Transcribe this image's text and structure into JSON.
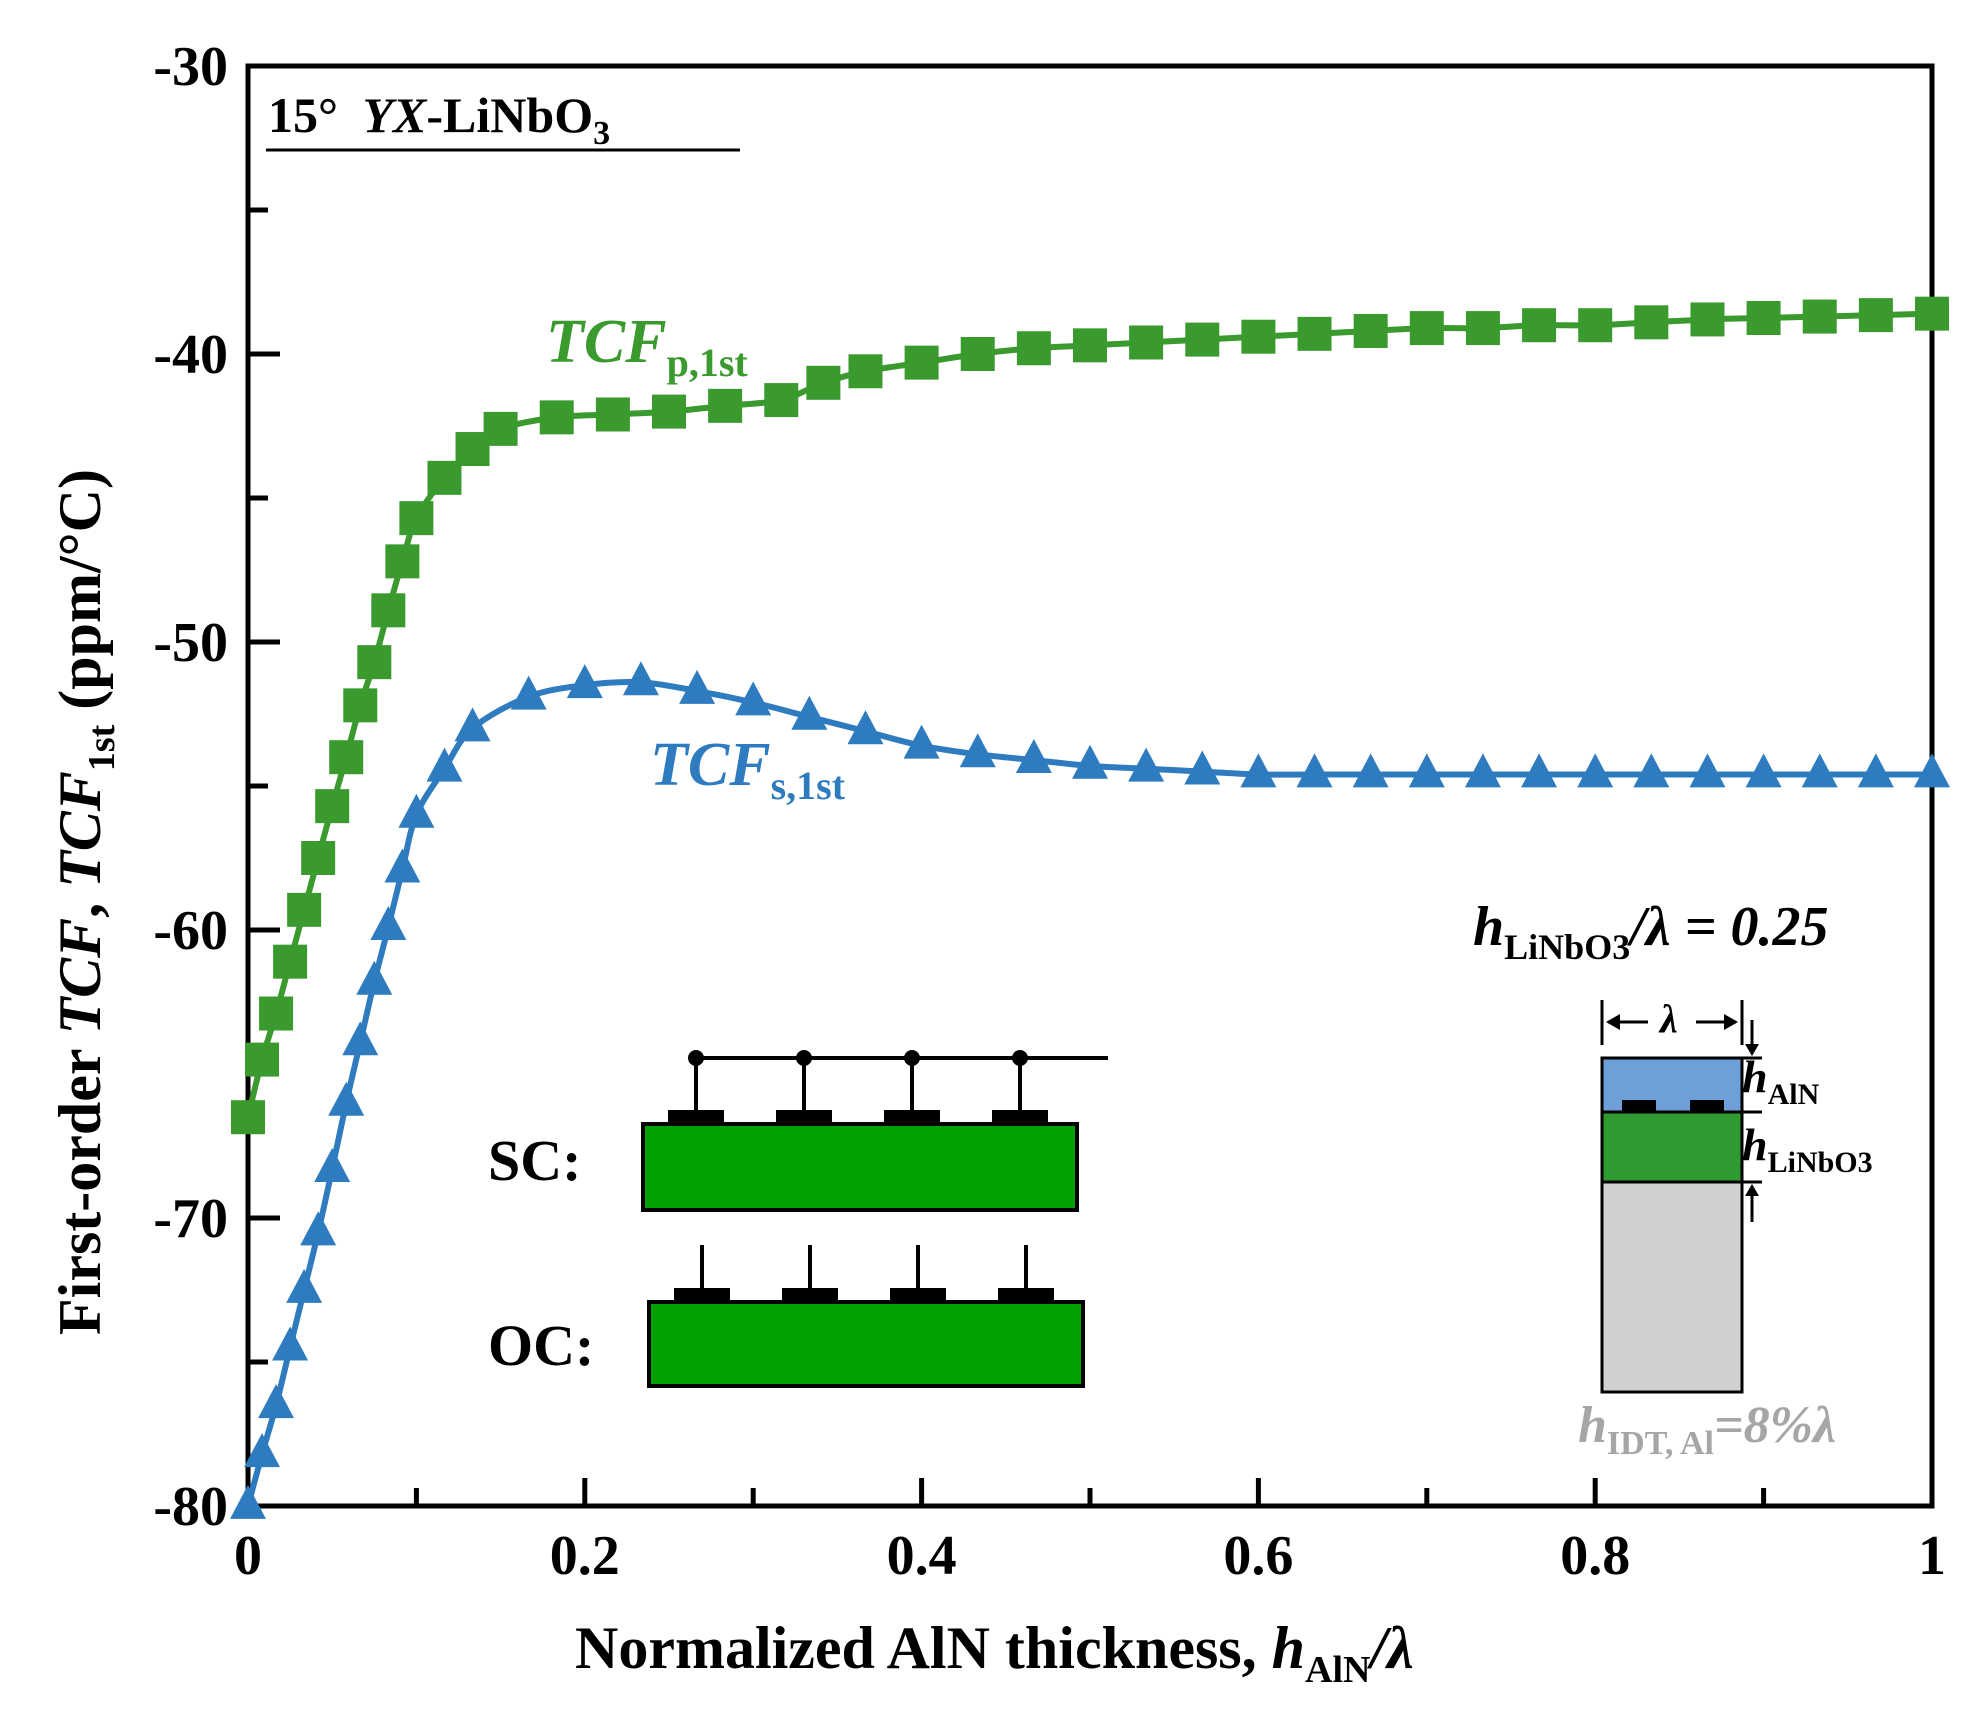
{
  "chart_data": {
    "type": "line",
    "title": "15° YX-LiNbO3",
    "title_parts": {
      "angle": "15°",
      "cut": "YX",
      "material": "-LiNbO",
      "sub": "3"
    },
    "xlabel": {
      "main": "Normalized AlN thickness, ",
      "var": "h",
      "sub": "AlN",
      "tail": "/λ"
    },
    "ylabel": {
      "p1": "First-order ",
      "v1": "TCF",
      "p2": ", ",
      "v2": "TCF",
      "sub": "1st",
      "p3": " (ppm/°C)"
    },
    "xlim": [
      0,
      1
    ],
    "ylim": [
      -80,
      -30
    ],
    "x_ticks": [
      0,
      0.2,
      0.4,
      0.6,
      0.8,
      1
    ],
    "x_tick_labels": [
      "0",
      "0.2",
      "0.4",
      "0.6",
      "0.8",
      "1"
    ],
    "y_ticks": [
      -80,
      -70,
      -60,
      -50,
      -40,
      -30
    ],
    "y_tick_labels": [
      "-80",
      "-70",
      "-60",
      "-50",
      "-40",
      "-30"
    ],
    "grid": false,
    "series": [
      {
        "name": "TCFp,1st",
        "label_main": "TCF",
        "label_sub": "p,1st",
        "color": "#3a9a2e",
        "marker": "square",
        "x": [
          0,
          0.00833,
          0.01667,
          0.025,
          0.03333,
          0.04167,
          0.05,
          0.05833,
          0.06667,
          0.075,
          0.08333,
          0.09167,
          0.1,
          0.11667,
          0.13333,
          0.15,
          0.18333,
          0.21667,
          0.25,
          0.28333,
          0.31667,
          0.34167,
          0.36667,
          0.4,
          0.43333,
          0.46667,
          0.5,
          0.53333,
          0.56667,
          0.6,
          0.63333,
          0.66667,
          0.7,
          0.73333,
          0.76667,
          0.8,
          0.83333,
          0.86667,
          0.9,
          0.93333,
          0.96667,
          1.0
        ],
        "y": [
          -66.5,
          -64.5,
          -62.9,
          -61.1,
          -59.3,
          -57.5,
          -55.7,
          -54.0,
          -52.2,
          -50.7,
          -48.9,
          -47.2,
          -45.7,
          -44.3,
          -43.3,
          -42.6,
          -42.2,
          -42.1,
          -42.0,
          -41.8,
          -41.6,
          -41.0,
          -40.6,
          -40.3,
          -40.0,
          -39.8,
          -39.7,
          -39.6,
          -39.5,
          -39.4,
          -39.3,
          -39.2,
          -39.1,
          -39.1,
          -39.0,
          -39.0,
          -38.9,
          -38.8,
          -38.75,
          -38.7,
          -38.65,
          -38.6
        ]
      },
      {
        "name": "TCFs,1st",
        "label_main": "TCF",
        "label_sub": "s,1st",
        "color": "#2e7cbf",
        "marker": "triangle",
        "x": [
          0,
          0.00833,
          0.01667,
          0.025,
          0.03333,
          0.04167,
          0.05,
          0.05833,
          0.06667,
          0.075,
          0.08333,
          0.09167,
          0.1,
          0.11667,
          0.13333,
          0.16667,
          0.2,
          0.23333,
          0.26667,
          0.3,
          0.33333,
          0.36667,
          0.4,
          0.43333,
          0.46667,
          0.5,
          0.53333,
          0.56667,
          0.6,
          0.63333,
          0.66667,
          0.7,
          0.73333,
          0.76667,
          0.8,
          0.83333,
          0.86667,
          0.9,
          0.93333,
          0.96667,
          1.0
        ],
        "y": [
          -80.0,
          -78.2,
          -76.5,
          -74.5,
          -72.5,
          -70.5,
          -68.3,
          -66.0,
          -63.9,
          -61.8,
          -59.9,
          -57.9,
          -56.0,
          -54.4,
          -53.0,
          -51.9,
          -51.5,
          -51.4,
          -51.7,
          -52.1,
          -52.6,
          -53.1,
          -53.6,
          -53.9,
          -54.1,
          -54.3,
          -54.4,
          -54.5,
          -54.6,
          -54.6,
          -54.6,
          -54.6,
          -54.6,
          -54.6,
          -54.6,
          -54.6,
          -54.6,
          -54.6,
          -54.6,
          -54.6,
          -54.6
        ]
      }
    ],
    "annotations": {
      "sc_label": "SC:",
      "oc_label": "OC:",
      "ratio": {
        "var": "h",
        "sub": "LiNbO3",
        "tail": "/λ = 0.25"
      },
      "lambda": "λ",
      "h_aln": {
        "var": "h",
        "sub": "AlN"
      },
      "h_linbo3": {
        "var": "h",
        "sub": "LiNbO3"
      },
      "h_idt": {
        "var": "h",
        "sub": "IDT, Al",
        "tail": "=8%λ"
      }
    },
    "colors": {
      "axis": "#000000",
      "green_series": "#3a9a2e",
      "blue_series": "#2e7cbf",
      "piezo_green": "#00a000",
      "layer_linbo3": "#2f9a2f",
      "layer_aln": "#6f9fd8",
      "substrate": "#d0d0d0",
      "idt_note": "#a6a6a6"
    }
  }
}
